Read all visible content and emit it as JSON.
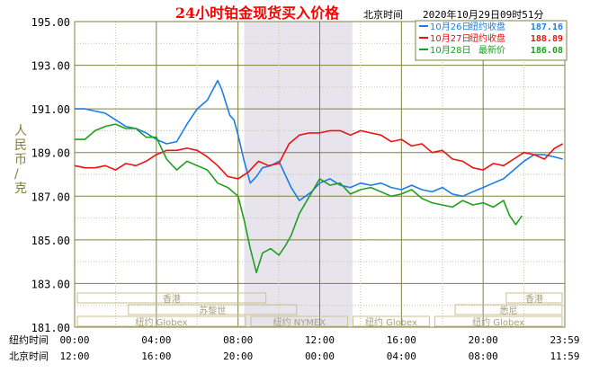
{
  "title": "24小时铂金现货买入价格",
  "timezone_label": "北京时间",
  "timestamp": "2020年10月29日09时51分",
  "y_axis_label": "人民币/克",
  "row_labels": {
    "ny": "纽约时间",
    "bj": "北京时间"
  },
  "colors": {
    "frame": "#808040",
    "axis_text": "#000000",
    "highlight": "#e8e4ee",
    "title": "#ff0000",
    "ruler_border": "#c8c090",
    "ruler_text": "#a8a080"
  },
  "chart_data": {
    "type": "line",
    "ylim": [
      181.0,
      195.0
    ],
    "xlim": [
      0,
      24
    ],
    "y_ticks": [
      "195.00",
      "193.00",
      "191.00",
      "189.00",
      "187.00",
      "185.00",
      "183.00",
      "181.00"
    ],
    "x_ticks_ny": [
      "00:00",
      "04:00",
      "08:00",
      "12:00",
      "16:00",
      "20:00",
      "23:59"
    ],
    "x_ticks_bj": [
      "12:00",
      "16:00",
      "20:00",
      "00:00",
      "04:00",
      "08:00",
      "11:59"
    ],
    "series": [
      {
        "name": "10月26日",
        "label": "纽约收盘",
        "value": "187.16",
        "color": "#1a7ee6",
        "x": [
          0,
          0.5,
          1,
          1.5,
          2,
          2.5,
          3,
          3.5,
          4,
          4.5,
          5,
          5.5,
          6,
          6.5,
          7,
          7.2,
          7.4,
          7.6,
          7.8,
          8,
          8.3,
          8.6,
          8.9,
          9.2,
          9.6,
          10,
          10.3,
          10.6,
          11,
          11.3,
          11.6,
          12,
          12.5,
          13,
          13.5,
          14,
          14.5,
          15,
          15.5,
          16,
          16.5,
          17,
          17.5,
          18,
          18.5,
          19,
          19.5,
          20,
          20.5,
          21,
          21.5,
          22,
          22.5,
          23,
          23.5,
          23.9
        ],
        "y": [
          191.0,
          191.0,
          190.9,
          190.8,
          190.5,
          190.2,
          190.1,
          189.9,
          189.6,
          189.4,
          189.5,
          190.3,
          191.0,
          191.4,
          192.3,
          191.9,
          191.3,
          190.7,
          190.5,
          189.8,
          188.6,
          187.6,
          187.9,
          188.3,
          188.4,
          188.6,
          188.0,
          187.4,
          186.8,
          187.0,
          187.2,
          187.6,
          187.8,
          187.5,
          187.4,
          187.6,
          187.5,
          187.6,
          187.4,
          187.3,
          187.5,
          187.3,
          187.2,
          187.4,
          187.1,
          187.0,
          187.2,
          187.4,
          187.6,
          187.8,
          188.2,
          188.6,
          188.9,
          188.9,
          188.8,
          188.7
        ]
      },
      {
        "name": "10月27日",
        "label": "纽约收盘",
        "value": "188.89",
        "color": "#ee1111",
        "x": [
          0,
          0.5,
          1,
          1.5,
          2,
          2.5,
          3,
          3.5,
          4,
          4.5,
          5,
          5.5,
          6,
          6.5,
          7,
          7.5,
          8,
          8.5,
          9,
          9.5,
          10,
          10.5,
          11,
          11.5,
          12,
          12.5,
          13,
          13.5,
          14,
          14.5,
          15,
          15.5,
          16,
          16.5,
          17,
          17.5,
          18,
          18.5,
          19,
          19.5,
          20,
          20.5,
          21,
          21.5,
          22,
          22.5,
          23,
          23.5,
          23.9
        ],
        "y": [
          188.4,
          188.3,
          188.3,
          188.4,
          188.2,
          188.5,
          188.4,
          188.6,
          188.9,
          189.1,
          189.1,
          189.2,
          189.1,
          188.8,
          188.4,
          187.9,
          187.8,
          188.1,
          188.6,
          188.4,
          188.5,
          189.4,
          189.8,
          189.9,
          189.9,
          190.0,
          190.0,
          189.8,
          190.0,
          189.9,
          189.8,
          189.5,
          189.6,
          189.3,
          189.4,
          189.0,
          189.1,
          188.7,
          188.6,
          188.3,
          188.2,
          188.5,
          188.4,
          188.7,
          189.0,
          188.9,
          188.7,
          189.2,
          189.4
        ]
      },
      {
        "name": "10月28日",
        "label": "最新价",
        "value": "186.08",
        "color": "#1ea01e",
        "x": [
          0,
          0.5,
          1,
          1.5,
          2,
          2.5,
          3,
          3.5,
          4,
          4.5,
          5,
          5.5,
          6,
          6.5,
          7,
          7.5,
          8,
          8.3,
          8.6,
          8.9,
          9.2,
          9.6,
          10,
          10.3,
          10.6,
          11,
          11.5,
          12,
          12.5,
          13,
          13.5,
          14,
          14.5,
          15,
          15.5,
          16,
          16.5,
          17,
          17.5,
          18,
          18.5,
          19,
          19.5,
          20,
          20.5,
          21,
          21.3,
          21.6,
          21.9
        ],
        "y": [
          189.6,
          189.6,
          190.0,
          190.2,
          190.3,
          190.1,
          190.1,
          189.7,
          189.7,
          188.7,
          188.2,
          188.6,
          188.4,
          188.2,
          187.6,
          187.4,
          187.0,
          185.9,
          184.6,
          183.5,
          184.4,
          184.6,
          184.3,
          184.7,
          185.2,
          186.2,
          187.0,
          187.8,
          187.5,
          187.6,
          187.1,
          187.3,
          187.4,
          187.2,
          187.0,
          187.1,
          187.3,
          186.9,
          186.7,
          186.6,
          186.5,
          186.8,
          186.6,
          186.7,
          186.5,
          186.8,
          186.1,
          185.7,
          186.1
        ]
      }
    ],
    "market_sessions": [
      {
        "name": "香港",
        "row": 0,
        "start": 0,
        "end": 9.5
      },
      {
        "name": "香港",
        "row": 0,
        "start": 21.0,
        "end": 24
      },
      {
        "name": "苏黎世",
        "row": 1,
        "start": 2.5,
        "end": 11.0
      },
      {
        "name": "悉尼",
        "row": 1,
        "start": 18.5,
        "end": 24
      },
      {
        "name": "纽约 Globex",
        "row": 2,
        "start": 0,
        "end": 8.5
      },
      {
        "name": "纽约 NYMEX",
        "row": 2,
        "start": 8.5,
        "end": 13.5
      },
      {
        "name": "纽约 Globex",
        "row": 2,
        "start": 13.5,
        "end": 17.5
      },
      {
        "name": "纽约 Globex",
        "row": 2,
        "start": 17.5,
        "end": 24
      }
    ],
    "highlight_range": [
      8.3,
      13.6
    ]
  }
}
